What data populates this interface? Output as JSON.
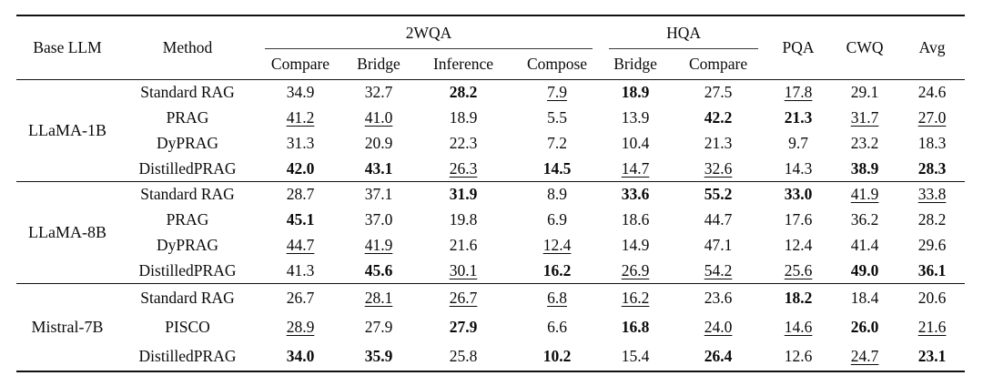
{
  "table": {
    "header": {
      "base_llm": "Base LLM",
      "method": "Method",
      "group_2wqa": "2WQA",
      "group_hqa": "HQA",
      "sub_2wqa": [
        "Compare",
        "Bridge",
        "Inference",
        "Compose"
      ],
      "sub_hqa": [
        "Bridge",
        "Compare"
      ],
      "pqa": "PQA",
      "cwq": "CWQ",
      "avg": "Avg"
    },
    "value_format_legend": {
      "bold_marker": "**x**",
      "underline_marker": "_x_"
    },
    "groups": [
      {
        "base_llm": "LLaMA-1B",
        "rows": [
          {
            "method": "Standard RAG",
            "values": [
              "34.9",
              "32.7",
              "**28.2**",
              "_7.9_",
              "**18.9**",
              "27.5",
              "_17.8_",
              "29.1",
              "24.6"
            ]
          },
          {
            "method": "PRAG",
            "values": [
              "_41.2_",
              "_41.0_",
              "18.9",
              "5.5",
              "13.9",
              "**42.2**",
              "**21.3**",
              "_31.7_",
              "_27.0_"
            ]
          },
          {
            "method": "DyPRAG",
            "values": [
              "31.3",
              "20.9",
              "22.3",
              "7.2",
              "10.4",
              "21.3",
              "9.7",
              "23.2",
              "18.3"
            ]
          },
          {
            "method": "DistilledPRAG",
            "values": [
              "**42.0**",
              "**43.1**",
              "_26.3_",
              "**14.5**",
              "_14.7_",
              "_32.6_",
              "14.3",
              "**38.9**",
              "**28.3**"
            ]
          }
        ]
      },
      {
        "base_llm": "LLaMA-8B",
        "rows": [
          {
            "method": "Standard RAG",
            "values": [
              "28.7",
              "37.1",
              "**31.9**",
              "8.9",
              "**33.6**",
              "**55.2**",
              "**33.0**",
              "_41.9_",
              "_33.8_"
            ]
          },
          {
            "method": "PRAG",
            "values": [
              "**45.1**",
              "37.0",
              "19.8",
              "6.9",
              "18.6",
              "44.7",
              "17.6",
              "36.2",
              "28.2"
            ]
          },
          {
            "method": "DyPRAG",
            "values": [
              "_44.7_",
              "_41.9_",
              "21.6",
              "_12.4_",
              "14.9",
              "47.1",
              "12.4",
              "41.4",
              "29.6"
            ]
          },
          {
            "method": "DistilledPRAG",
            "values": [
              "41.3",
              "**45.6**",
              "_30.1_",
              "**16.2**",
              "_26.9_",
              "_54.2_",
              "_25.6_",
              "**49.0**",
              "**36.1**"
            ]
          }
        ]
      },
      {
        "base_llm": "Mistral-7B",
        "rows": [
          {
            "method": "Standard RAG",
            "values": [
              "26.7",
              "_28.1_",
              "_26.7_",
              "_6.8_",
              "_16.2_",
              "23.6",
              "**18.2**",
              "18.4",
              "20.6"
            ]
          },
          {
            "method": "PISCO",
            "values": [
              "_28.9_",
              "27.9",
              "**27.9**",
              "6.6",
              "**16.8**",
              "_24.0_",
              "_14.6_",
              "**26.0**",
              "_21.6_"
            ]
          },
          {
            "method": "DistilledPRAG",
            "values": [
              "**34.0**",
              "**35.9**",
              "25.8",
              "**10.2**",
              "15.4",
              "**26.4**",
              "12.6",
              "_24.7_",
              "**23.1**"
            ]
          }
        ]
      }
    ]
  },
  "colors": {
    "text": "#0a0a0a",
    "rule": "#111111",
    "background": "#ffffff"
  }
}
